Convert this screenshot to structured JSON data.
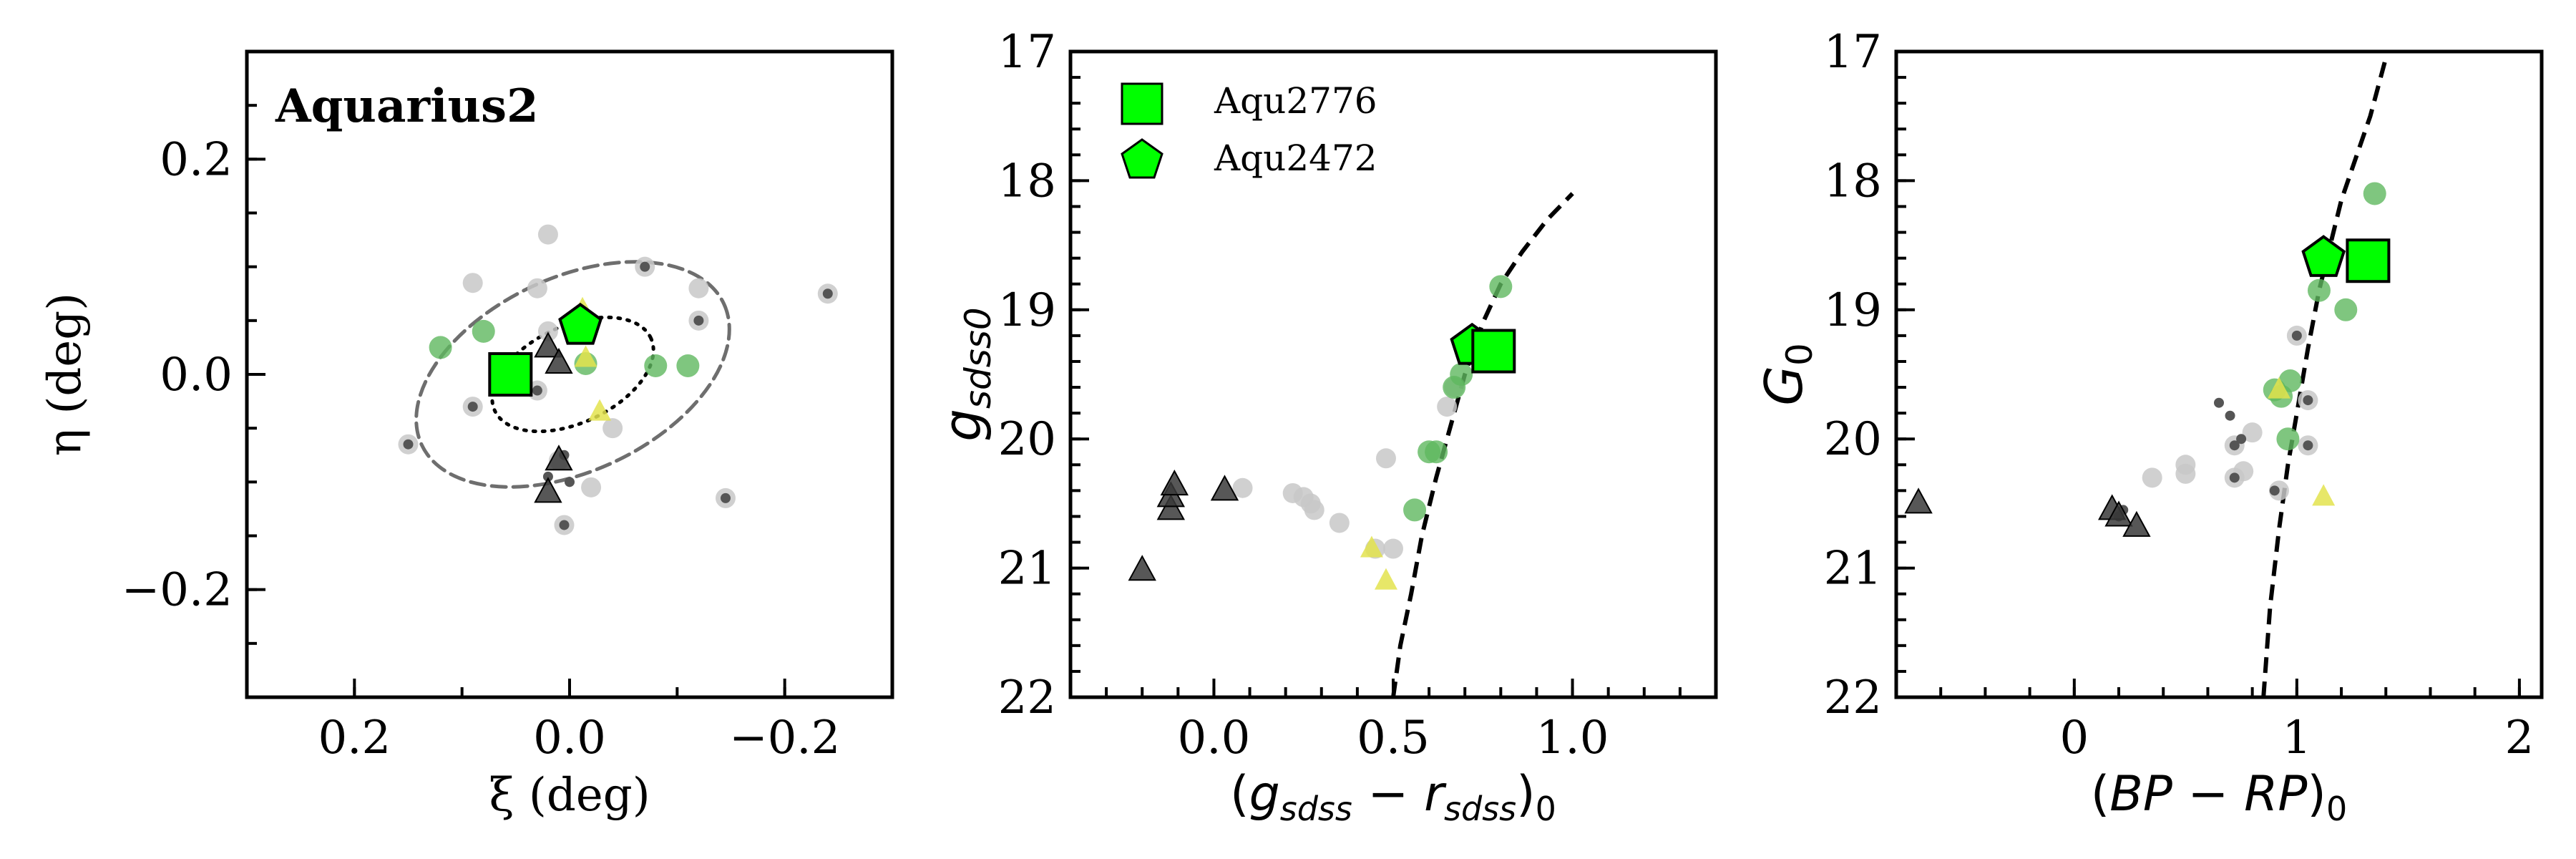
{
  "chart_data": [
    {
      "type": "scatter",
      "title": "Aquarius2",
      "xlabel": "ξ (deg)",
      "ylabel": "η (deg)",
      "xlim": [
        0.3,
        -0.3
      ],
      "ylim": [
        -0.3,
        0.3
      ],
      "xticks": [
        {
          "v": 0.2,
          "label": "0.2"
        },
        {
          "v": 0.0,
          "label": "0.0"
        },
        {
          "v": -0.2,
          "label": "−0.2"
        }
      ],
      "yticks": [
        {
          "v": 0.2,
          "label": "0.2"
        },
        {
          "v": 0.0,
          "label": "0.0"
        },
        {
          "v": -0.2,
          "label": "−0.2"
        }
      ],
      "series": [
        {
          "marker": "circle-light",
          "points": [
            [
              0.02,
              0.13
            ],
            [
              0.09,
              0.085
            ],
            [
              0.03,
              0.08
            ],
            [
              0.03,
              -0.015
            ],
            [
              -0.12,
              0.08
            ],
            [
              -0.12,
              0.05
            ],
            [
              -0.24,
              0.075
            ],
            [
              -0.145,
              -0.115
            ],
            [
              0.09,
              -0.03
            ],
            [
              0.15,
              -0.065
            ],
            [
              0.005,
              -0.14
            ],
            [
              0.01,
              -0.08
            ],
            [
              -0.02,
              -0.105
            ],
            [
              -0.04,
              -0.05
            ],
            [
              0.02,
              0.04
            ],
            [
              -0.07,
              0.1
            ]
          ]
        },
        {
          "marker": "circle-dark",
          "points": [
            [
              -0.07,
              0.1
            ],
            [
              0.02,
              -0.095
            ],
            [
              0.0,
              -0.1
            ],
            [
              0.005,
              -0.14
            ],
            [
              0.15,
              -0.065
            ],
            [
              0.03,
              -0.015
            ],
            [
              -0.145,
              -0.115
            ],
            [
              -0.24,
              0.075
            ],
            [
              -0.12,
              0.05
            ],
            [
              0.09,
              -0.03
            ],
            [
              0.005,
              -0.075
            ]
          ]
        },
        {
          "marker": "circle-green",
          "points": [
            [
              0.12,
              0.025
            ],
            [
              0.08,
              0.04
            ],
            [
              -0.015,
              0.01
            ],
            [
              -0.08,
              0.008
            ],
            [
              -0.11,
              0.008
            ]
          ]
        },
        {
          "marker": "triangle-dark",
          "points": [
            [
              0.02,
              0.025
            ],
            [
              0.01,
              0.01
            ],
            [
              0.01,
              -0.08
            ],
            [
              0.02,
              -0.11
            ]
          ]
        },
        {
          "marker": "triangle-yellow",
          "points": [
            [
              -0.012,
              0.06
            ],
            [
              -0.015,
              0.015
            ],
            [
              -0.028,
              -0.035
            ]
          ]
        },
        {
          "name": "Aqu2776",
          "marker": "square-green",
          "points": [
            [
              0.055,
              0.0
            ]
          ]
        },
        {
          "name": "Aqu2472",
          "marker": "pentagon-green",
          "points": [
            [
              -0.01,
              0.045
            ]
          ]
        }
      ],
      "ellipses": [
        {
          "style": "dashed",
          "center": [
            -0.003,
            0.0
          ],
          "semi_axes": [
            0.155,
            0.09
          ],
          "angle_deg": 25
        },
        {
          "style": "dotted",
          "center": [
            -0.003,
            0.0
          ],
          "semi_axes": [
            0.08,
            0.045
          ],
          "angle_deg": 25
        }
      ]
    },
    {
      "type": "scatter",
      "xlabel": "(g_sdss − r_sdss)_0",
      "ylabel": "g_sdss0",
      "xlim": [
        -0.4,
        1.4
      ],
      "ylim": [
        22,
        17
      ],
      "xticks": [
        {
          "v": 0.0,
          "label": "0.0"
        },
        {
          "v": 0.5,
          "label": "0.5"
        },
        {
          "v": 1.0,
          "label": "1.0"
        }
      ],
      "yticks": [
        {
          "v": 17,
          "label": "17"
        },
        {
          "v": 18,
          "label": "18"
        },
        {
          "v": 19,
          "label": "19"
        },
        {
          "v": 20,
          "label": "20"
        },
        {
          "v": 21,
          "label": "21"
        },
        {
          "v": 22,
          "label": "22"
        }
      ],
      "legend": {
        "position": "top-left",
        "entries": [
          {
            "label": "Aqu2776",
            "marker": "square-green"
          },
          {
            "label": "Aqu2472",
            "marker": "pentagon-green"
          }
        ]
      },
      "isochrone": [
        [
          0.5,
          22.0
        ],
        [
          0.52,
          21.6
        ],
        [
          0.55,
          21.2
        ],
        [
          0.58,
          20.75
        ],
        [
          0.62,
          20.3
        ],
        [
          0.66,
          19.9
        ],
        [
          0.7,
          19.5
        ],
        [
          0.75,
          19.1
        ],
        [
          0.8,
          18.8
        ],
        [
          0.86,
          18.55
        ],
        [
          0.93,
          18.3
        ],
        [
          1.0,
          18.1
        ]
      ],
      "series": [
        {
          "marker": "circle-light",
          "points": [
            [
              0.08,
              20.38
            ],
            [
              0.22,
              20.42
            ],
            [
              0.25,
              20.45
            ],
            [
              0.27,
              20.5
            ],
            [
              0.28,
              20.55
            ],
            [
              0.35,
              20.65
            ],
            [
              0.45,
              20.85
            ],
            [
              0.48,
              20.15
            ],
            [
              0.5,
              20.85
            ],
            [
              0.65,
              19.75
            ],
            [
              0.67,
              19.6
            ],
            [
              0.78,
              19.3
            ]
          ]
        },
        {
          "marker": "circle-green",
          "points": [
            [
              0.6,
              20.1
            ],
            [
              0.62,
              20.1
            ],
            [
              0.56,
              20.55
            ],
            [
              0.67,
              19.6
            ],
            [
              0.69,
              19.5
            ],
            [
              0.8,
              18.82
            ]
          ]
        },
        {
          "marker": "triangle-dark",
          "points": [
            [
              -0.2,
              21.02
            ],
            [
              -0.12,
              20.55
            ],
            [
              -0.12,
              20.45
            ],
            [
              -0.11,
              20.36
            ],
            [
              0.03,
              20.4
            ]
          ]
        },
        {
          "marker": "triangle-yellow",
          "points": [
            [
              0.44,
              20.85
            ],
            [
              0.48,
              21.1
            ],
            [
              0.74,
              19.25
            ]
          ]
        },
        {
          "name": "Aqu2776",
          "marker": "square-green",
          "points": [
            [
              0.78,
              19.32
            ]
          ]
        },
        {
          "name": "Aqu2472",
          "marker": "pentagon-green",
          "points": [
            [
              0.72,
              19.28
            ]
          ]
        }
      ]
    },
    {
      "type": "scatter",
      "xlabel": "(BP − RP)_0",
      "ylabel": "G_0",
      "xlim": [
        -0.8,
        2.1
      ],
      "ylim": [
        22,
        17
      ],
      "xticks": [
        {
          "v": 0,
          "label": "0"
        },
        {
          "v": 1,
          "label": "1"
        },
        {
          "v": 2,
          "label": "2"
        }
      ],
      "yticks": [
        {
          "v": 17,
          "label": "17"
        },
        {
          "v": 18,
          "label": "18"
        },
        {
          "v": 19,
          "label": "19"
        },
        {
          "v": 20,
          "label": "20"
        },
        {
          "v": 21,
          "label": "21"
        },
        {
          "v": 22,
          "label": "22"
        }
      ],
      "isochrone": [
        [
          0.85,
          22.0
        ],
        [
          0.88,
          21.3
        ],
        [
          0.92,
          20.7
        ],
        [
          0.96,
          20.2
        ],
        [
          1.0,
          19.8
        ],
        [
          1.05,
          19.3
        ],
        [
          1.1,
          18.85
        ],
        [
          1.15,
          18.5
        ],
        [
          1.2,
          18.15
        ],
        [
          1.27,
          17.8
        ],
        [
          1.33,
          17.5
        ],
        [
          1.4,
          17.05
        ]
      ],
      "series": [
        {
          "marker": "circle-light",
          "points": [
            [
              0.35,
              20.3
            ],
            [
              0.5,
              20.2
            ],
            [
              0.5,
              20.27
            ],
            [
              0.72,
              20.05
            ],
            [
              0.72,
              20.3
            ],
            [
              0.76,
              20.25
            ],
            [
              0.8,
              19.95
            ],
            [
              0.92,
              20.4
            ],
            [
              1.0,
              19.2
            ],
            [
              1.05,
              19.7
            ],
            [
              1.05,
              20.05
            ]
          ]
        },
        {
          "marker": "circle-dark",
          "points": [
            [
              0.65,
              19.72
            ],
            [
              0.7,
              19.82
            ],
            [
              0.75,
              20.0
            ],
            [
              0.72,
              20.05
            ],
            [
              0.72,
              20.3
            ],
            [
              0.9,
              20.4
            ],
            [
              1.05,
              19.7
            ],
            [
              1.05,
              20.05
            ],
            [
              1.0,
              19.2
            ],
            [
              0.2,
              20.6
            ],
            [
              0.22,
              20.55
            ]
          ]
        },
        {
          "marker": "circle-green",
          "points": [
            [
              1.35,
              18.1
            ],
            [
              1.1,
              18.85
            ],
            [
              1.22,
              19.0
            ],
            [
              0.97,
              19.55
            ],
            [
              0.9,
              19.62
            ],
            [
              0.93,
              19.67
            ],
            [
              0.96,
              20.0
            ],
            [
              1.36,
              18.6
            ]
          ]
        },
        {
          "marker": "triangle-dark",
          "points": [
            [
              -0.7,
              20.5
            ],
            [
              0.17,
              20.55
            ],
            [
              0.2,
              20.6
            ],
            [
              0.28,
              20.68
            ]
          ]
        },
        {
          "marker": "triangle-yellow",
          "points": [
            [
              1.12,
              20.45
            ],
            [
              0.92,
              19.62
            ]
          ]
        },
        {
          "name": "Aqu2776",
          "marker": "square-green",
          "points": [
            [
              1.32,
              18.62
            ]
          ]
        },
        {
          "name": "Aqu2472",
          "marker": "pentagon-green",
          "points": [
            [
              1.12,
              18.6
            ]
          ]
        }
      ]
    }
  ]
}
